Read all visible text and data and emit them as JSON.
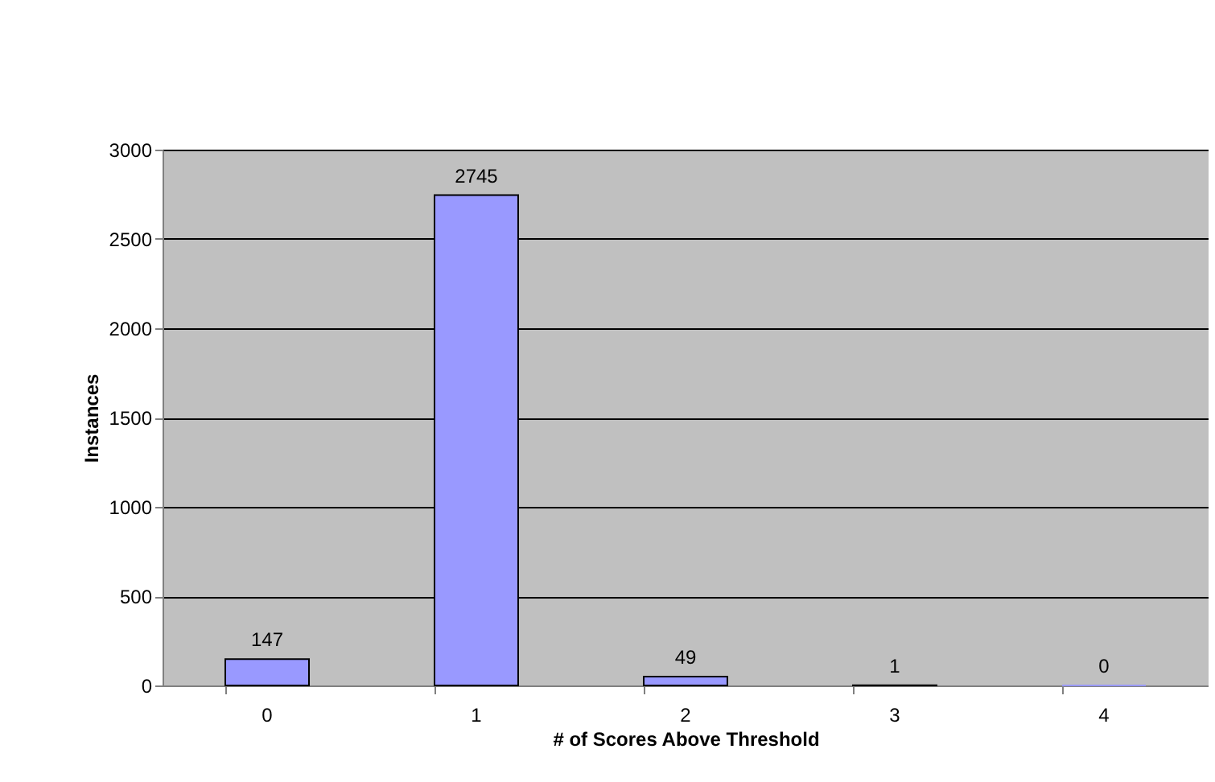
{
  "chart_data": {
    "type": "bar",
    "xlabel": "# of Scores Above Threshold",
    "ylabel": "Instances",
    "categories": [
      "0",
      "1",
      "2",
      "3",
      "4"
    ],
    "values": [
      147,
      2745,
      49,
      1,
      0
    ],
    "color": "#9999ff",
    "ylim": [
      0,
      3000
    ],
    "yticks": [
      0,
      500,
      1000,
      1500,
      2000,
      2500,
      3000
    ],
    "grid": "y",
    "data_labels": true
  }
}
